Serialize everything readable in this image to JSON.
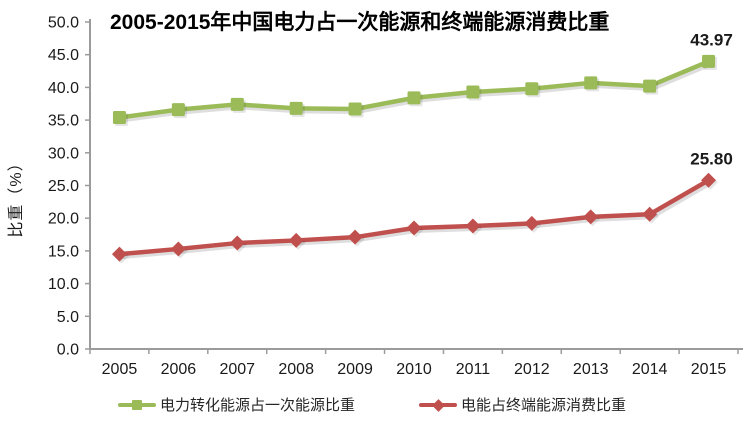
{
  "chart_data": {
    "type": "line",
    "title": "2005-2015年中国电力占一次能源和终端能源消费比重",
    "xlabel": "",
    "ylabel": "比重（%）",
    "ylim": [
      0,
      50
    ],
    "y_tick_step": 5,
    "y_tick_labels": [
      "0.0",
      "5.0",
      "10.0",
      "15.0",
      "20.0",
      "25.0",
      "30.0",
      "35.0",
      "40.0",
      "45.0",
      "50.0"
    ],
    "grid": false,
    "legend_position": "bottom",
    "axis_color": "#9b9b9b",
    "text_color": "#1a1a1a",
    "categories": [
      "2005",
      "2006",
      "2007",
      "2008",
      "2009",
      "2010",
      "2011",
      "2012",
      "2013",
      "2014",
      "2015"
    ],
    "series": [
      {
        "name": "电力转化能源占一次能源比重",
        "marker": "square",
        "color": "#9BBB59",
        "values": [
          35.4,
          36.6,
          37.4,
          36.8,
          36.7,
          38.4,
          39.3,
          39.8,
          40.7,
          40.2,
          43.97
        ],
        "end_label": "43.97"
      },
      {
        "name": "电能占终端能源消费比重",
        "marker": "diamond",
        "color": "#C0504D",
        "values": [
          14.5,
          15.3,
          16.2,
          16.6,
          17.1,
          18.5,
          18.8,
          19.2,
          20.2,
          20.6,
          25.8
        ],
        "end_label": "25.80"
      }
    ]
  }
}
